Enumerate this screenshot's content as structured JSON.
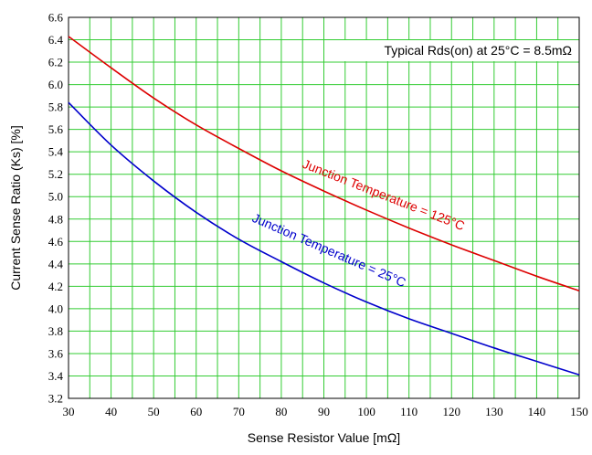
{
  "chart_data": {
    "type": "line",
    "xlabel": "Sense Resistor Value [mΩ]",
    "ylabel": "Current Sense Ratio (Ks) [%]",
    "annotation": "Typical Rds(on) at 25°C = 8.5mΩ",
    "xlim": [
      30,
      150
    ],
    "ylim": [
      3.2,
      6.6
    ],
    "x_ticks": [
      30,
      40,
      50,
      60,
      70,
      80,
      90,
      100,
      110,
      120,
      130,
      140,
      150
    ],
    "y_ticks": [
      "3.2",
      "3.4",
      "3.6",
      "3.8",
      "4.0",
      "4.2",
      "4.4",
      "4.6",
      "4.8",
      "5.0",
      "5.2",
      "5.4",
      "5.6",
      "5.8",
      "6.0",
      "6.2",
      "6.4",
      "6.6"
    ],
    "grid": true,
    "grid_color": "#33cc33",
    "series": [
      {
        "name": "Junction Temperature = 125°C",
        "color": "#dd0000",
        "x": [
          30,
          40,
          50,
          60,
          70,
          80,
          90,
          100,
          110,
          120,
          130,
          140,
          150
        ],
        "y": [
          6.43,
          6.15,
          5.88,
          5.64,
          5.43,
          5.23,
          5.05,
          4.88,
          4.72,
          4.57,
          4.43,
          4.29,
          4.16
        ]
      },
      {
        "name": "Junction Temperature = 25°C",
        "color": "#0000cc",
        "x": [
          30,
          40,
          50,
          60,
          70,
          80,
          90,
          100,
          110,
          120,
          130,
          140,
          150
        ],
        "y": [
          5.84,
          5.46,
          5.14,
          4.86,
          4.62,
          4.42,
          4.23,
          4.06,
          3.91,
          3.78,
          3.65,
          3.53,
          3.41
        ]
      }
    ]
  }
}
